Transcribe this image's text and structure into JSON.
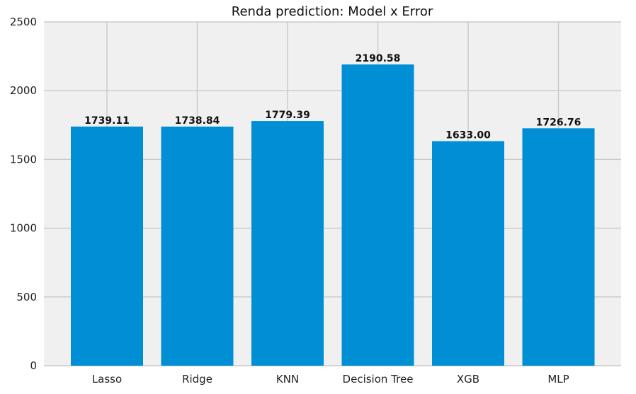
{
  "chart_data": {
    "type": "bar",
    "title": "Renda prediction: Model x Error",
    "xlabel": "",
    "ylabel": "",
    "categories": [
      "Lasso",
      "Ridge",
      "KNN",
      "Decision Tree",
      "XGB",
      "MLP"
    ],
    "values": [
      1739.11,
      1738.84,
      1779.39,
      2190.58,
      1633.0,
      1726.76
    ],
    "value_labels": [
      "1739.11",
      "1738.84",
      "1779.39",
      "2190.58",
      "1633.00",
      "1726.76"
    ],
    "ylim": [
      0,
      2500
    ],
    "yticks": [
      0,
      500,
      1000,
      1500,
      2000,
      2500
    ],
    "grid": true,
    "colors": {
      "bar": "#008fd5",
      "plot_background": "#f0f0f0",
      "grid": "#cbcbcb"
    }
  }
}
